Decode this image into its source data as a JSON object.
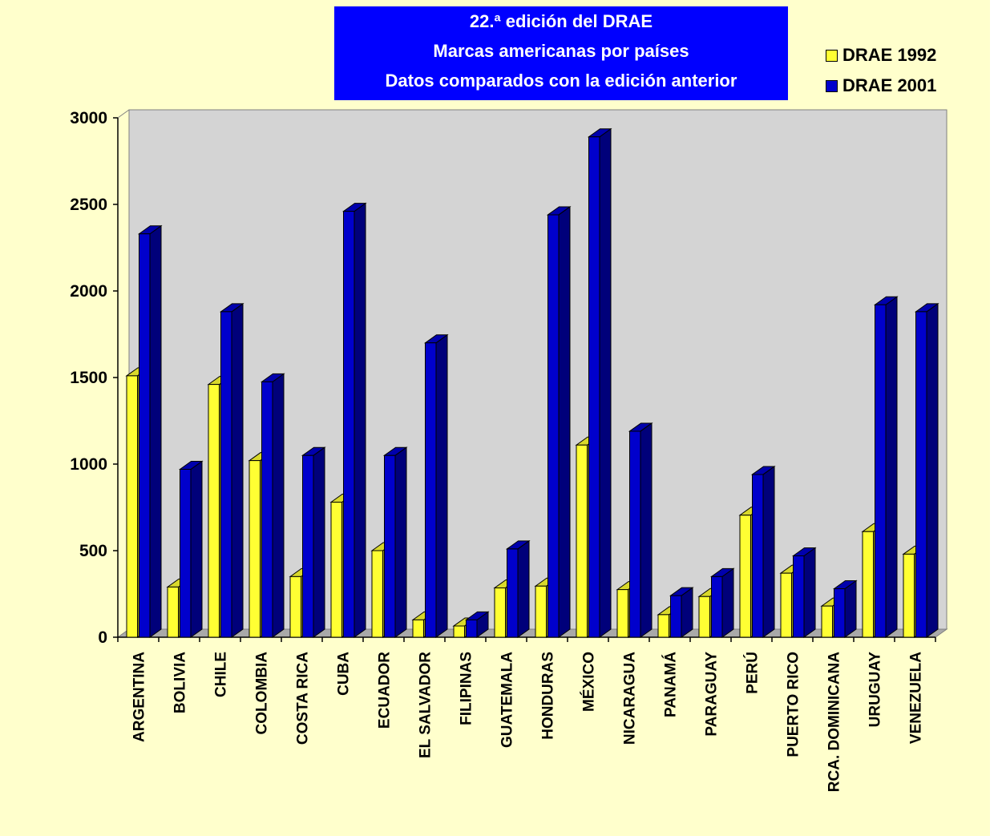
{
  "title_lines": [
    "22.ª edición del DRAE",
    "Marcas americanas por países",
    "Datos comparados con la edición anterior"
  ],
  "legend": [
    {
      "label": "DRAE 1992",
      "color": "#ffff33"
    },
    {
      "label": "DRAE 2001",
      "color": "#0000cc"
    }
  ],
  "chart_data": {
    "type": "bar",
    "title": "22.ª edición del DRAE / Marcas americanas por países / Datos comparados con la edición anterior",
    "xlabel": "",
    "ylabel": "",
    "ylim": [
      0,
      3000
    ],
    "yticks": [
      0,
      500,
      1000,
      1500,
      2000,
      2500,
      3000
    ],
    "grid": false,
    "legend_position": "top-right",
    "three_d": true,
    "categories": [
      "ARGENTINA",
      "BOLIVIA",
      "CHILE",
      "COLOMBIA",
      "COSTA RICA",
      "CUBA",
      "ECUADOR",
      "EL SALVADOR",
      "FILIPINAS",
      "GUATEMALA",
      "HONDURAS",
      "MÉXICO",
      "NICARAGUA",
      "PANAMÁ",
      "PARAGUAY",
      "PERÚ",
      "PUERTO RICO",
      "RCA. DOMINICANA",
      "URUGUAY",
      "VENEZUELA"
    ],
    "series": [
      {
        "name": "DRAE 1992",
        "color": "#ffff33",
        "values": [
          1510,
          290,
          1460,
          1020,
          350,
          780,
          500,
          100,
          65,
          285,
          295,
          1110,
          275,
          130,
          235,
          705,
          370,
          180,
          610,
          480
        ]
      },
      {
        "name": "DRAE 2001",
        "color": "#0000cc",
        "values": [
          2330,
          970,
          1880,
          1475,
          1050,
          2460,
          1050,
          1700,
          100,
          510,
          2440,
          2890,
          1190,
          240,
          350,
          940,
          470,
          280,
          1920,
          1880
        ]
      }
    ]
  }
}
